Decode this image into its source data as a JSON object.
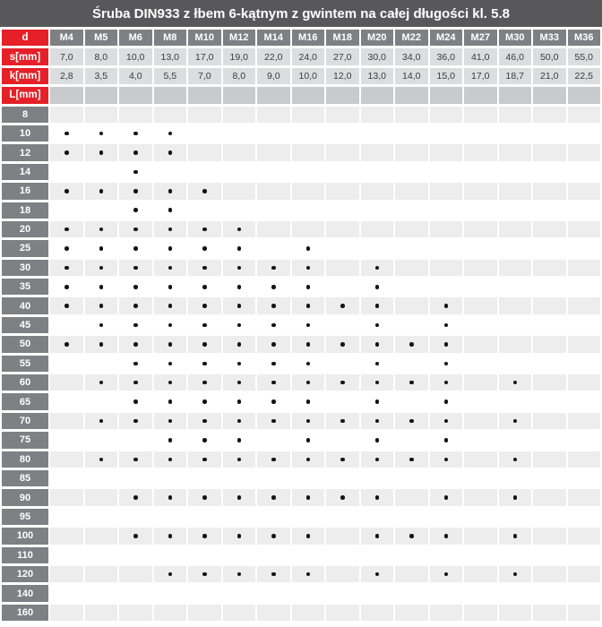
{
  "title": "Śruba DIN933 z łbem 6-kątnym z gwintem na całej długości kl. 5.8",
  "header": {
    "d_label": "d",
    "sizes": [
      "M4",
      "M5",
      "M6",
      "M8",
      "M10",
      "M12",
      "M14",
      "M16",
      "M18",
      "M20",
      "M22",
      "M24",
      "M27",
      "M30",
      "M33",
      "M36"
    ]
  },
  "dims": {
    "s": {
      "label": "s[mm]",
      "values": [
        "7,0",
        "8,0",
        "10,0",
        "13,0",
        "17,0",
        "19,0",
        "22,0",
        "24,0",
        "27,0",
        "30,0",
        "34,0",
        "36,0",
        "41,0",
        "46,0",
        "50,0",
        "55,0"
      ]
    },
    "k": {
      "label": "k[mm]",
      "values": [
        "2,8",
        "3,5",
        "4,0",
        "5,5",
        "7,0",
        "8,0",
        "9,0",
        "10,0",
        "12,0",
        "13,0",
        "14,0",
        "15,0",
        "17,0",
        "18,7",
        "21,0",
        "22,5"
      ]
    },
    "l": {
      "label": "L[mm]"
    }
  },
  "lengths": [
    {
      "label": "8",
      "available": []
    },
    {
      "label": "10",
      "available": [
        "M4",
        "M5",
        "M6",
        "M8"
      ]
    },
    {
      "label": "12",
      "available": [
        "M4",
        "M5",
        "M6",
        "M8"
      ]
    },
    {
      "label": "14",
      "available": [
        "M6"
      ]
    },
    {
      "label": "16",
      "available": [
        "M4",
        "M5",
        "M6",
        "M8",
        "M10"
      ]
    },
    {
      "label": "18",
      "available": [
        "M6",
        "M8"
      ]
    },
    {
      "label": "20",
      "available": [
        "M4",
        "M5",
        "M6",
        "M8",
        "M10",
        "M12"
      ]
    },
    {
      "label": "25",
      "available": [
        "M4",
        "M5",
        "M6",
        "M8",
        "M10",
        "M12",
        "M16"
      ]
    },
    {
      "label": "30",
      "available": [
        "M4",
        "M5",
        "M6",
        "M8",
        "M10",
        "M12",
        "M14",
        "M16",
        "M20"
      ]
    },
    {
      "label": "35",
      "available": [
        "M4",
        "M5",
        "M6",
        "M8",
        "M10",
        "M12",
        "M14",
        "M16",
        "M20"
      ]
    },
    {
      "label": "40",
      "available": [
        "M4",
        "M5",
        "M6",
        "M8",
        "M10",
        "M12",
        "M14",
        "M16",
        "M18",
        "M20",
        "M24"
      ]
    },
    {
      "label": "45",
      "available": [
        "M5",
        "M6",
        "M8",
        "M10",
        "M12",
        "M14",
        "M16",
        "M20",
        "M24"
      ]
    },
    {
      "label": "50",
      "available": [
        "M4",
        "M5",
        "M6",
        "M8",
        "M10",
        "M12",
        "M14",
        "M16",
        "M18",
        "M20",
        "M22",
        "M24"
      ]
    },
    {
      "label": "55",
      "available": [
        "M6",
        "M8",
        "M10",
        "M12",
        "M14",
        "M16",
        "M20",
        "M24"
      ]
    },
    {
      "label": "60",
      "available": [
        "M5",
        "M6",
        "M8",
        "M10",
        "M12",
        "M14",
        "M16",
        "M18",
        "M20",
        "M22",
        "M24",
        "M30"
      ]
    },
    {
      "label": "65",
      "available": [
        "M6",
        "M8",
        "M10",
        "M12",
        "M14",
        "M16",
        "M20",
        "M24"
      ]
    },
    {
      "label": "70",
      "available": [
        "M5",
        "M6",
        "M8",
        "M10",
        "M12",
        "M14",
        "M16",
        "M18",
        "M20",
        "M22",
        "M24",
        "M30"
      ]
    },
    {
      "label": "75",
      "available": [
        "M8",
        "M10",
        "M12",
        "M16",
        "M20",
        "M24"
      ]
    },
    {
      "label": "80",
      "available": [
        "M5",
        "M6",
        "M8",
        "M10",
        "M12",
        "M14",
        "M16",
        "M18",
        "M20",
        "M22",
        "M24",
        "M30"
      ]
    },
    {
      "label": "85",
      "available": []
    },
    {
      "label": "90",
      "available": [
        "M6",
        "M8",
        "M10",
        "M12",
        "M14",
        "M16",
        "M18",
        "M20",
        "M24",
        "M30"
      ]
    },
    {
      "label": "95",
      "available": []
    },
    {
      "label": "100",
      "available": [
        "M6",
        "M8",
        "M10",
        "M12",
        "M14",
        "M16",
        "M20",
        "M22",
        "M24",
        "M30"
      ]
    },
    {
      "label": "110",
      "available": []
    },
    {
      "label": "120",
      "available": [
        "M8",
        "M10",
        "M12",
        "M14",
        "M16",
        "M20",
        "M24",
        "M30"
      ]
    },
    {
      "label": "140",
      "available": []
    },
    {
      "label": "160",
      "available": []
    }
  ],
  "colors": {
    "accent_red": "#e52028",
    "title_bg": "#58585a",
    "header_gray": "#7f8083",
    "value_cell": "#dcddde",
    "l_row_cell": "#c9cacb",
    "stripe_shaded": "#ededee",
    "stripe_plain": "#ffffff",
    "dot": "#141414"
  }
}
